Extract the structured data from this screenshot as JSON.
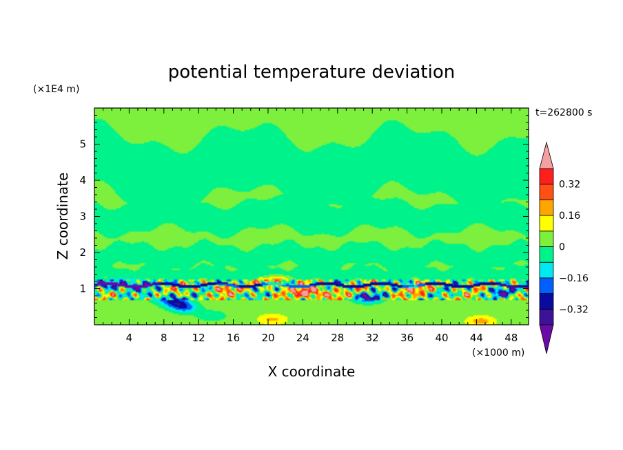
{
  "chart_data": {
    "type": "heatmap",
    "title": "potential temperature deviation",
    "xlabel": "X coordinate",
    "ylabel": "Z coordinate",
    "x_unit": "(×1000 m)",
    "y_unit": "(×1E4 m)",
    "time_label": "t=262800 s",
    "xlim": [
      0,
      50
    ],
    "ylim": [
      0,
      6
    ],
    "x_ticks": [
      4,
      8,
      12,
      16,
      20,
      24,
      28,
      32,
      36,
      40,
      44,
      48
    ],
    "x_tick_labels": [
      "4",
      "8",
      "12",
      "16",
      "20",
      "24",
      "28",
      "32",
      "36",
      "40",
      "44",
      "48"
    ],
    "y_ticks": [
      1,
      2,
      3,
      4,
      5
    ],
    "y_tick_labels": [
      "1",
      "2",
      "3",
      "4",
      "5"
    ],
    "colorbar": {
      "levels": [
        -0.4,
        -0.32,
        -0.24,
        -0.16,
        -0.08,
        0,
        0.08,
        0.16,
        0.24,
        0.32,
        0.4
      ],
      "colors": [
        "#6a0aa8",
        "#3c1296",
        "#0a0aa0",
        "#0060ff",
        "#00e8f0",
        "#00f28a",
        "#7cf03c",
        "#ffff00",
        "#ffa500",
        "#ff5014",
        "#ff1e1e",
        "#f4a0a0"
      ],
      "labels": [
        {
          "value": 0.32,
          "text": "0.32"
        },
        {
          "value": 0.16,
          "text": "0.16"
        },
        {
          "value": 0,
          "text": "0"
        },
        {
          "value": -0.16,
          "text": "−0.16"
        },
        {
          "value": -0.32,
          "text": "−0.32"
        }
      ]
    },
    "field": {
      "background_value": 0.04,
      "layers": [
        {
          "z_low": 5.1,
          "z_high": 6.0,
          "value": 0.04,
          "wave_amp": 0.2,
          "wave_len": 22
        },
        {
          "z_low": 3.5,
          "z_high": 5.2,
          "value": -0.04,
          "wave_amp": 0.35,
          "wave_len": 18
        },
        {
          "z_low": 2.6,
          "z_high": 3.4,
          "value": -0.04,
          "wave_amp": 0.15,
          "wave_len": 12
        },
        {
          "z_low": 1.6,
          "z_high": 2.2,
          "value": -0.04,
          "wave_amp": 0.12,
          "wave_len": 9
        },
        {
          "z_low": 1.2,
          "z_high": 1.6,
          "value": -0.04,
          "wave_amp": 0.08,
          "wave_len": 6
        }
      ],
      "active_band": {
        "z_low": 0.7,
        "z_high": 1.25,
        "x_from": 0,
        "x_to": 50
      },
      "features": [
        {
          "x": 2,
          "z": 1.1,
          "value": -0.34
        },
        {
          "x": 5,
          "z": 1.08,
          "value": -0.28
        },
        {
          "x": 8,
          "z": 0.75,
          "value": -0.2
        },
        {
          "x": 9.5,
          "z": 0.6,
          "value": -0.3
        },
        {
          "x": 10.5,
          "z": 0.45,
          "value": -0.2
        },
        {
          "x": 13.5,
          "z": 0.25,
          "value": -0.12
        },
        {
          "x": 15,
          "z": 1.0,
          "value": 0.2
        },
        {
          "x": 21,
          "z": 1.2,
          "value": 0.3
        },
        {
          "x": 24.5,
          "z": 0.9,
          "value": 0.4
        },
        {
          "x": 27,
          "z": 0.85,
          "value": 0.18
        },
        {
          "x": 31.5,
          "z": 0.75,
          "value": -0.35
        },
        {
          "x": 37,
          "z": 1.0,
          "value": 0.2
        },
        {
          "x": 44.5,
          "z": 0.1,
          "value": 0.16
        },
        {
          "x": 47,
          "z": 0.9,
          "value": -0.3
        },
        {
          "x": 20.5,
          "z": 0.15,
          "value": 0.14
        }
      ]
    }
  }
}
